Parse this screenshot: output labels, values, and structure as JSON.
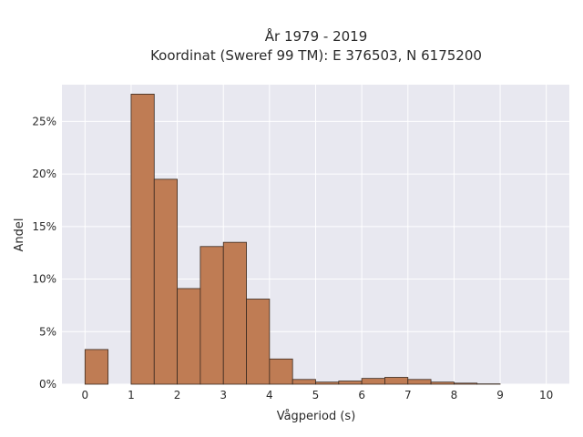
{
  "chart_data": {
    "type": "bar",
    "title_lines": [
      "År 1979 - 2019",
      "Koordinat (Sweref 99 TM): E 376503, N 6175200"
    ],
    "xlabel": "Vågperiod (s)",
    "ylabel": "Andel",
    "bin_width": 0.5,
    "bins": [
      {
        "start": 0.0,
        "value": 3.3
      },
      {
        "start": 0.5,
        "value": 0.0
      },
      {
        "start": 1.0,
        "value": 27.6
      },
      {
        "start": 1.5,
        "value": 19.5
      },
      {
        "start": 2.0,
        "value": 9.1
      },
      {
        "start": 2.5,
        "value": 13.1
      },
      {
        "start": 3.0,
        "value": 13.5
      },
      {
        "start": 3.5,
        "value": 8.1
      },
      {
        "start": 4.0,
        "value": 2.4
      },
      {
        "start": 4.5,
        "value": 0.45
      },
      {
        "start": 5.0,
        "value": 0.2
      },
      {
        "start": 5.5,
        "value": 0.3
      },
      {
        "start": 6.0,
        "value": 0.55
      },
      {
        "start": 6.5,
        "value": 0.65
      },
      {
        "start": 7.0,
        "value": 0.45
      },
      {
        "start": 7.5,
        "value": 0.2
      },
      {
        "start": 8.0,
        "value": 0.1
      },
      {
        "start": 8.5,
        "value": 0.03
      }
    ],
    "x_ticks": [
      "0",
      "1",
      "2",
      "3",
      "4",
      "5",
      "6",
      "7",
      "8",
      "9",
      "10"
    ],
    "y_ticks": [
      "0%",
      "5%",
      "10%",
      "15%",
      "20%",
      "25%"
    ],
    "xlim": [
      -0.5,
      10.5
    ],
    "ylim": [
      0,
      28.5
    ],
    "grid": true,
    "colors": {
      "bar_fill": "#bf7c54",
      "bar_stroke": "#3a2a20",
      "plot_bg": "#e8e8f0",
      "grid": "#ffffff"
    }
  }
}
